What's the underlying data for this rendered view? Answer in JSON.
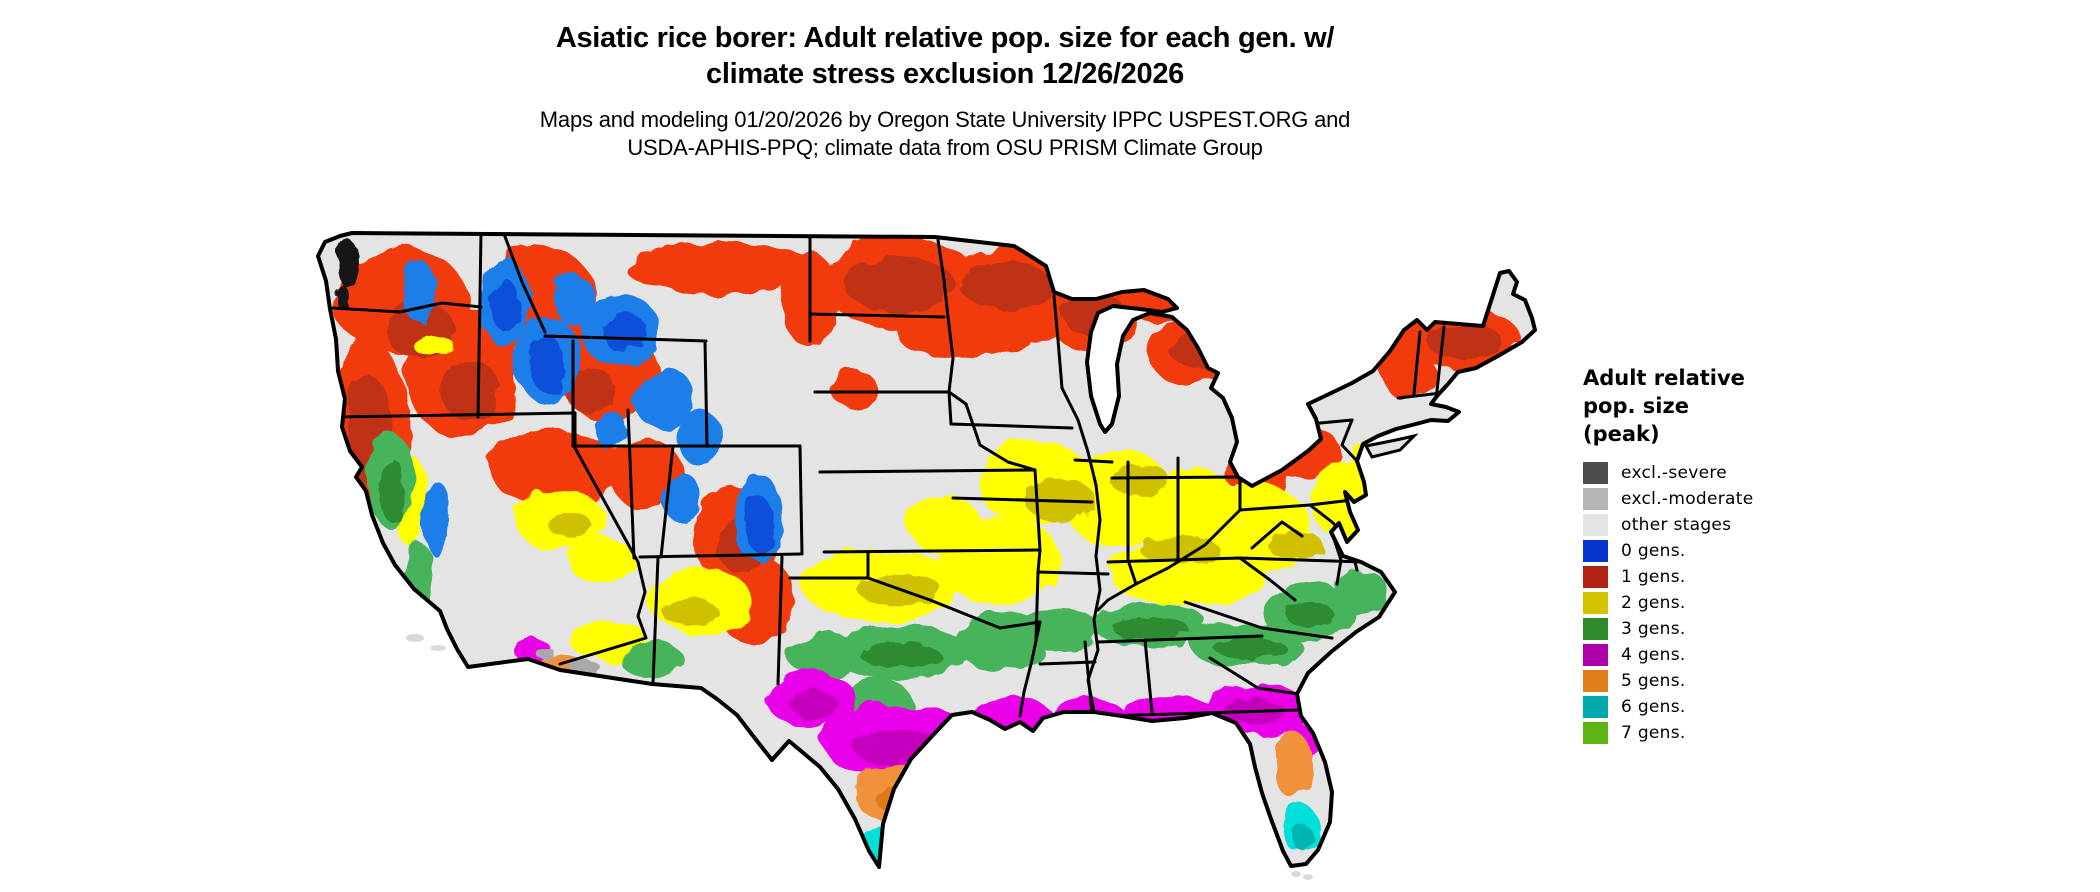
{
  "title": {
    "line1": "Asiatic rice borer: Adult relative pop. size for each gen. w/",
    "line2": "climate stress exclusion 12/26/2026"
  },
  "subtitle": {
    "line1": "Maps and modeling 01/20/2026 by Oregon State University IPPC USPEST.ORG and",
    "line2": "USDA-APHIS-PPQ; climate data from OSU PRISM Climate Group"
  },
  "legend": {
    "title_lines": [
      "Adult relative",
      "pop. size",
      "(peak)"
    ],
    "items": [
      {
        "label": "excl.-severe",
        "color": "#4d4d4d"
      },
      {
        "label": "excl.-moderate",
        "color": "#b5b5b5"
      },
      {
        "label": "other stages",
        "color": "#e4e4e4"
      },
      {
        "label": "0 gens.",
        "color": "#0634cc"
      },
      {
        "label": "1 gens.",
        "color": "#b22215"
      },
      {
        "label": "2 gens.",
        "color": "#d4c400"
      },
      {
        "label": "3 gens.",
        "color": "#2e8b2a"
      },
      {
        "label": "4 gens.",
        "color": "#ae00a8"
      },
      {
        "label": "5 gens.",
        "color": "#e07f18"
      },
      {
        "label": "6 gens.",
        "color": "#00a8ac"
      },
      {
        "label": "7 gens.",
        "color": "#5cb414"
      }
    ]
  },
  "map": {
    "background": "#e4e4e4",
    "outline_color": "#000000",
    "water_color": "#ffffff",
    "colors": {
      "land": "#e4e4e4",
      "red": "#f23b0e",
      "red_dark": "#c03014",
      "blue": "#1d7ee8",
      "blue_dark": "#0b4fd8",
      "yellow": "#ffff00",
      "yellow_dark": "#cfc000",
      "green": "#46b45c",
      "green_dark": "#2f8b33",
      "magenta": "#ea00e8",
      "magenta_dark": "#c400be",
      "orange": "#f0913a",
      "orange_dark": "#df7a18",
      "cyan": "#00e0da",
      "cyan_dark": "#00b4b0",
      "excl_moderate": "#a9a9a9",
      "excl_severe": "#141414",
      "island": "#d9d9d9"
    },
    "bands": [
      {
        "value": "1 gens.",
        "color_key": "red",
        "coverage": "Pacific Northwest, Great Basin ranges, Rockies, northern plains (ND/MN/WI/upper MI), upstate NY, northern New England, Appalachian ridges"
      },
      {
        "value": "0 gens.",
        "color_key": "blue",
        "coverage": "high mountains: Cascades, Sierra, Idaho/Montana/Wyoming/Colorado/Utah Rockies"
      },
      {
        "value": "2 gens.",
        "color_key": "yellow",
        "coverage": "central band: Nebraska/Kansas, Iowa, Missouri, Illinois, Indiana, Ohio, Kentucky, WV/Virginia, Nevada, CA central valley, N New Mexico"
      },
      {
        "value": "3 gens.",
        "color_key": "green",
        "coverage": "Oklahoma, N Texas, Arkansas, Tennessee, N Mississippi/Alabama/Georgia, Carolinas, CA coast ranges"
      },
      {
        "value": "4 gens.",
        "color_key": "magenta",
        "coverage": "central/west Texas, Louisiana, S Mississippi/Alabama, S Georgia, N Florida, low SW deserts"
      },
      {
        "value": "5 gens.",
        "color_key": "orange",
        "coverage": "south Texas, Arizona low desert, central Florida"
      },
      {
        "value": "6 gens.",
        "color_key": "cyan",
        "coverage": "southern tip of Texas, south Florida"
      },
      {
        "value": "excl.-moderate",
        "color_key": "excl_moderate",
        "coverage": "small patches near Yuma/Phoenix"
      },
      {
        "value": "excl.-severe",
        "color_key": "excl_severe",
        "coverage": "Puget Sound coastal specks"
      }
    ]
  }
}
